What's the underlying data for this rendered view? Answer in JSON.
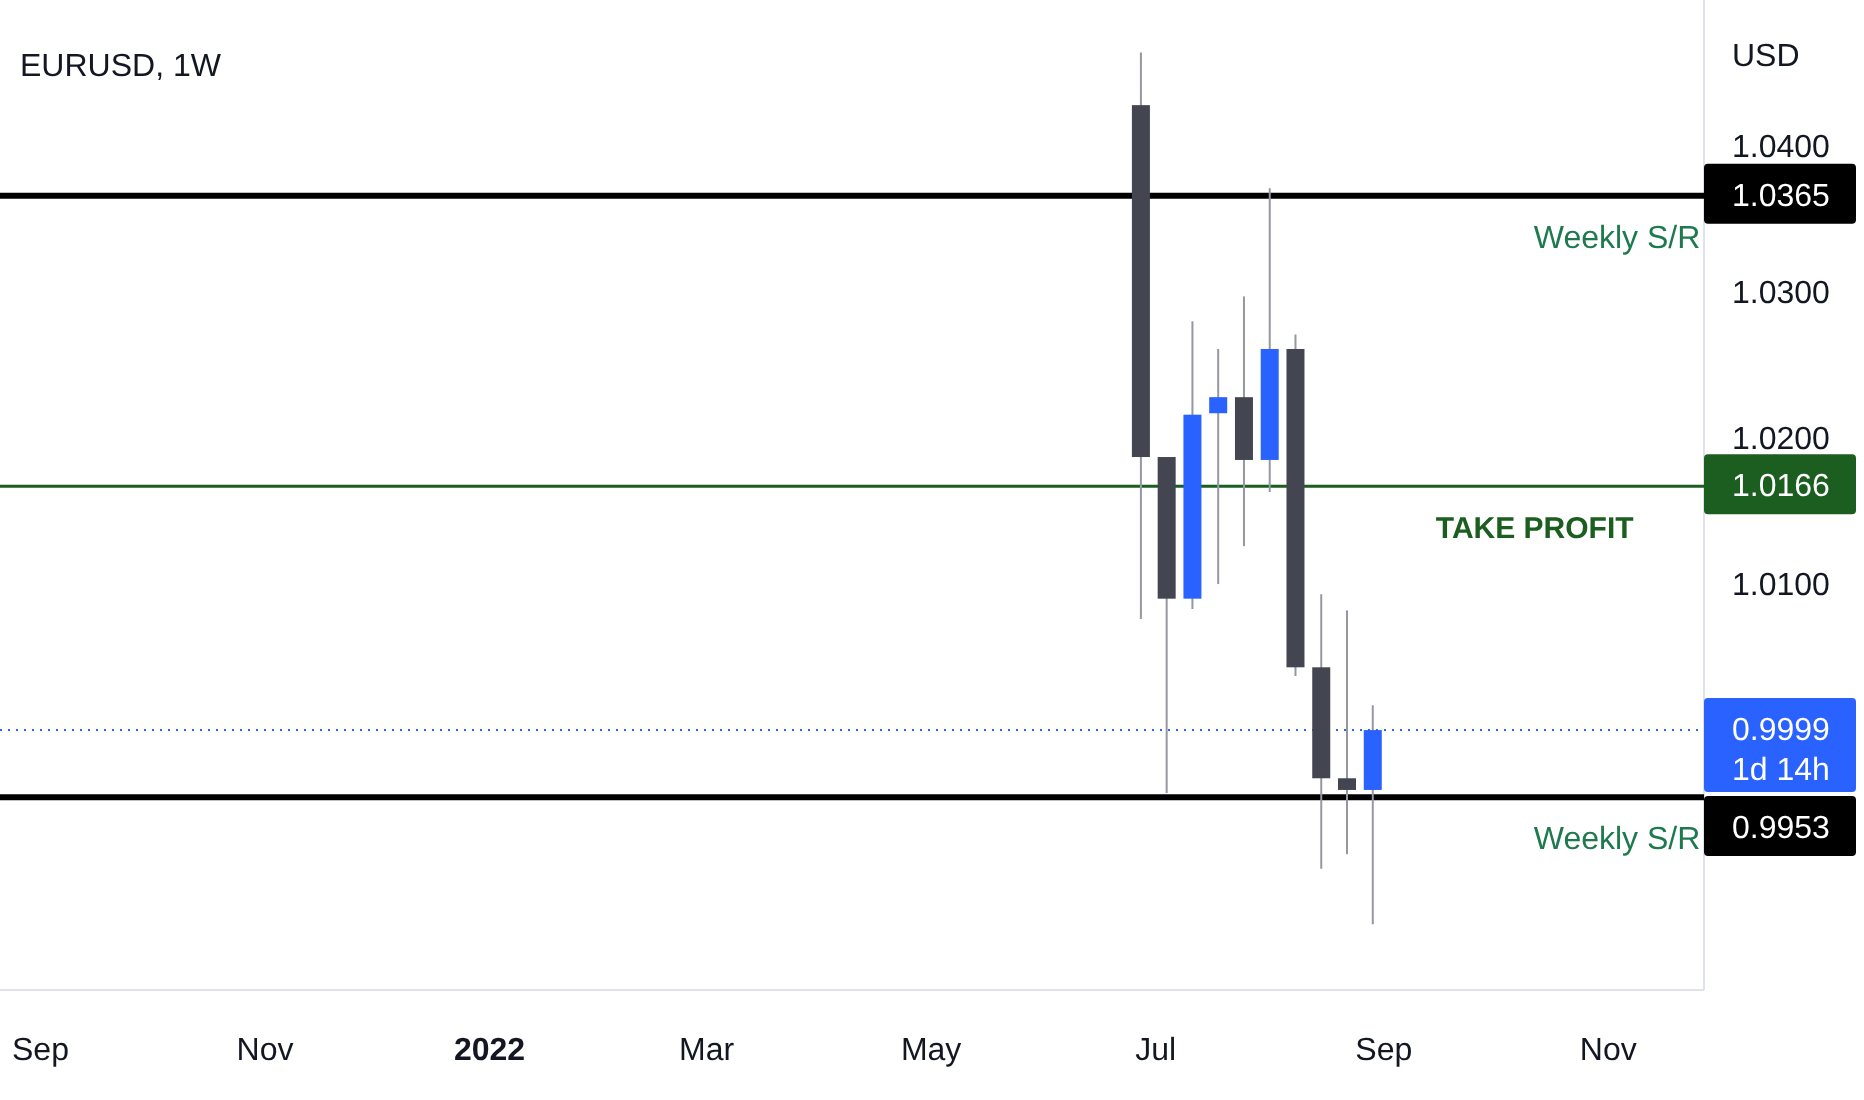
{
  "chart_data": {
    "type": "candlestick",
    "title": "EURUSD, 1W",
    "ylabel": "USD",
    "x": [
      "2022-06-27",
      "2022-07-04",
      "2022-07-11",
      "2022-07-18",
      "2022-07-25",
      "2022-08-01",
      "2022-08-08",
      "2022-08-15",
      "2022-08-22",
      "2022-08-29"
    ],
    "ohlc": [
      [
        1.0427,
        1.0463,
        1.0075,
        1.0186
      ],
      [
        1.0186,
        1.0186,
        0.9956,
        1.0089
      ],
      [
        1.0089,
        1.0279,
        1.0082,
        1.0215
      ],
      [
        1.0216,
        1.026,
        1.0099,
        1.0227
      ],
      [
        1.0227,
        1.0296,
        1.0125,
        1.0184
      ],
      [
        1.0184,
        1.037,
        1.0162,
        1.026
      ],
      [
        1.026,
        1.027,
        1.0036,
        1.0042
      ],
      [
        1.0042,
        1.0092,
        0.9904,
        0.9966
      ],
      [
        0.9966,
        1.0081,
        0.9914,
        0.9958
      ],
      [
        0.9958,
        1.0016,
        0.9866,
        0.9999
      ]
    ],
    "colors": [
      "#434651",
      "#434651",
      "#2962ff",
      "#2962ff",
      "#434651",
      "#2962ff",
      "#434651",
      "#434651",
      "#434651",
      "#2962ff"
    ],
    "xlim": [
      "2021-08-21",
      "2022-11-27"
    ],
    "xticks": [
      {
        "value": "2021-09-01",
        "label": "Sep"
      },
      {
        "value": "2021-11-01",
        "label": "Nov"
      },
      {
        "value": "2022-01-01",
        "label": "2022"
      },
      {
        "value": "2022-03-01",
        "label": "Mar"
      },
      {
        "value": "2022-05-01",
        "label": "May"
      },
      {
        "value": "2022-07-01",
        "label": "Jul"
      },
      {
        "value": "2022-09-01",
        "label": "Sep"
      },
      {
        "value": "2022-11-01",
        "label": "Nov"
      }
    ],
    "ylim": [
      0.9821,
      1.0499
    ],
    "yticks": [
      {
        "value": 1.04,
        "label": "1.0400"
      },
      {
        "value": 1.03,
        "label": "1.0300"
      },
      {
        "value": 1.02,
        "label": "1.0200"
      },
      {
        "value": 1.01,
        "label": "1.0100"
      }
    ],
    "ref_lines": [
      {
        "axis": "y",
        "value": 1.0365,
        "label": "1.0365",
        "color": "#000000",
        "line_style": "solid"
      },
      {
        "axis": "y",
        "value": 1.0166,
        "label": "1.0166",
        "color": "#1b5e20",
        "line_style": "solid"
      },
      {
        "axis": "y",
        "value": 0.9953,
        "label": "0.9953",
        "color": "#000000",
        "line_style": "solid"
      },
      {
        "axis": "y",
        "value": 0.9999,
        "label": "0.9999",
        "color": "#2962ff",
        "line_style": "dotted"
      }
    ],
    "annotations": [
      {
        "text": "Weekly S/R",
        "x": "2022-11-26",
        "y": 1.0365
      },
      {
        "text": "TAKE PROFIT",
        "x": "2022-10-12",
        "y": 1.0166
      },
      {
        "text": "Weekly S/R",
        "x": "2022-11-26",
        "y": 0.9953
      },
      "1d 14h"
    ],
    "grid": false
  }
}
